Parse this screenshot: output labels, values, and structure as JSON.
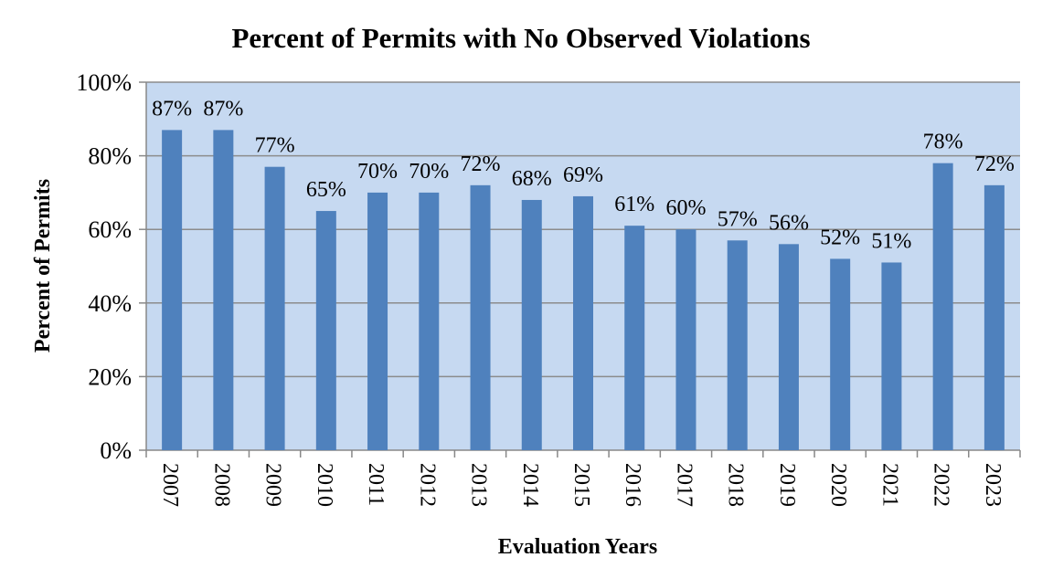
{
  "chart_data": {
    "type": "bar",
    "title": "Percent of Permits with No Observed Violations",
    "xlabel": "Evaluation Years",
    "ylabel": "Percent of Permits",
    "categories": [
      "2007",
      "2008",
      "2009",
      "2010",
      "2011",
      "2012",
      "2013",
      "2014",
      "2015",
      "2016",
      "2017",
      "2018",
      "2019",
      "2020",
      "2021",
      "2022",
      "2023"
    ],
    "values": [
      87,
      87,
      77,
      65,
      70,
      70,
      72,
      68,
      69,
      61,
      60,
      57,
      56,
      52,
      51,
      78,
      72
    ],
    "data_labels": [
      "87%",
      "87%",
      "77%",
      "65%",
      "70%",
      "70%",
      "72%",
      "68%",
      "69%",
      "61%",
      "60%",
      "57%",
      "56%",
      "52%",
      "51%",
      "78%",
      "72%"
    ],
    "ylim": [
      0,
      100
    ],
    "yticks": [
      "0%",
      "20%",
      "40%",
      "60%",
      "80%",
      "100%"
    ],
    "grid": true,
    "legend": "none",
    "colors": {
      "bar": "#4f81bd",
      "plot_background": "#c6d9f1",
      "grid": "#8c8c8c"
    }
  }
}
